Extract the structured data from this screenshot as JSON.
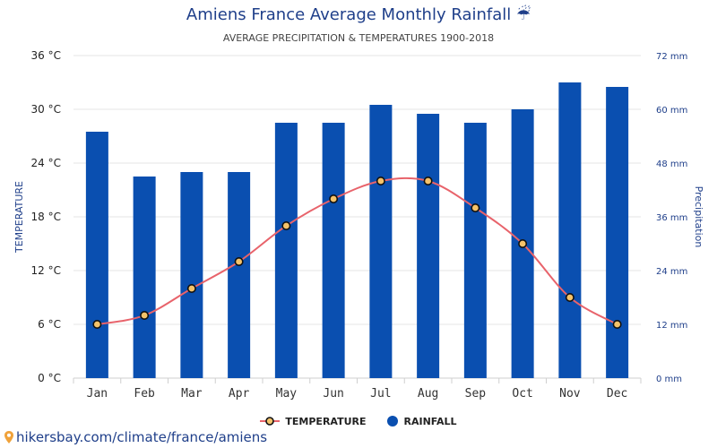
{
  "title": "Amiens France Average Monthly Rainfall ☔",
  "subtitle": "AVERAGE PRECIPITATION & TEMPERATURES 1900-2018",
  "legend": {
    "temperature": "TEMPERATURE",
    "rainfall": "RAINFALL"
  },
  "credit": "hikersbay.com/climate/france/amiens",
  "colors": {
    "rain": "#0a4fb0",
    "temp_line": "#e8636b",
    "marker_fill": "#f5c36a",
    "text": "#1f3f8a"
  },
  "chart_data": {
    "type": "bar+line",
    "categories": [
      "Jan",
      "Feb",
      "Mar",
      "Apr",
      "May",
      "Jun",
      "Jul",
      "Aug",
      "Sep",
      "Oct",
      "Nov",
      "Dec"
    ],
    "series": [
      {
        "name": "RAINFALL",
        "type": "bar",
        "axis": "right",
        "values": [
          55,
          45,
          46,
          46,
          57,
          57,
          61,
          59,
          57,
          60,
          66,
          65
        ]
      },
      {
        "name": "TEMPERATURE",
        "type": "line",
        "axis": "left",
        "values": [
          6,
          7,
          10,
          13,
          17,
          20,
          22,
          22,
          19,
          15,
          9,
          6
        ]
      }
    ],
    "ylabel": "TEMPERATURE",
    "ylabel_right": "Precipitation",
    "ylim": [
      0,
      36
    ],
    "ylim_right": [
      0,
      72
    ],
    "yticks": [
      "0 °C",
      "6 °C",
      "12 °C",
      "18 °C",
      "24 °C",
      "30 °C",
      "36 °C"
    ],
    "yticks_right": [
      "0 mm",
      "12 mm",
      "24 mm",
      "36 mm",
      "48 mm",
      "60 mm",
      "72 mm"
    ],
    "grid": true,
    "legend_position": "bottom"
  }
}
